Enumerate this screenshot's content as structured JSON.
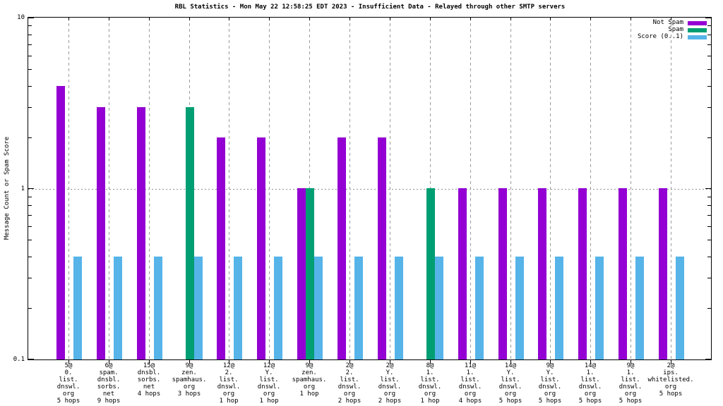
{
  "title": "RBL Statistics - Mon May 22 12:58:25 EDT 2023 - Insufficient Data - Relayed through other SMTP servers",
  "chart_data": {
    "type": "bar",
    "title": "RBL Statistics - Mon May 22 12:58:25 EDT 2023 - Insufficient Data - Relayed through other SMTP servers",
    "ylabel": "Message Count or Spam Score",
    "xlabel": "",
    "y_scale": "log",
    "ylim": [
      0.1,
      10
    ],
    "yticks": [
      {
        "label": "10",
        "value": 10
      },
      {
        "label": "1",
        "value": 1
      },
      {
        "label": "0.1",
        "value": 0.1
      }
    ],
    "grid": true,
    "grid_color": "#9b9b9b",
    "legend_position": "top-right-inside",
    "legend": [
      {
        "label": "Not Spam",
        "color": "#9400D3"
      },
      {
        "label": "Spam",
        "color": "#009E73"
      },
      {
        "label": "Score (0..1)",
        "color": "#56B4E9"
      }
    ],
    "categories": [
      [
        "5@",
        "0.",
        "list.",
        "dnswl.",
        "org",
        "5 hops"
      ],
      [
        "6@",
        "spam.",
        "dnsbl.",
        "sorbs.",
        "net",
        "9 hops"
      ],
      [
        "15@",
        "dnsbl.",
        "sorbs.",
        "net",
        "4 hops"
      ],
      [
        "9@",
        "zen.",
        "spamhaus.",
        "org",
        "3 hops"
      ],
      [
        "12@",
        "2.",
        "list.",
        "dnswl.",
        "org",
        "1 hop"
      ],
      [
        "12@",
        "Y.",
        "list.",
        "dnswl.",
        "org",
        "1 hop"
      ],
      [
        "9@",
        "zen.",
        "spamhaus.",
        "org",
        "1 hop"
      ],
      [
        "2@",
        "2.",
        "list.",
        "dnswl.",
        "org",
        "2 hops"
      ],
      [
        "2@",
        "Y.",
        "list.",
        "dnswl.",
        "org",
        "2 hops"
      ],
      [
        "8@",
        "1.",
        "list.",
        "dnswl.",
        "org",
        "1 hop"
      ],
      [
        "11@",
        "1.",
        "list.",
        "dnswl.",
        "org",
        "4 hops"
      ],
      [
        "14@",
        "Y.",
        "list.",
        "dnswl.",
        "org",
        "5 hops"
      ],
      [
        "9@",
        "Y.",
        "list.",
        "dnswl.",
        "org",
        "5 hops"
      ],
      [
        "14@",
        "1.",
        "list.",
        "dnswl.",
        "org",
        "5 hops"
      ],
      [
        "9@",
        "1.",
        "list.",
        "dnswl.",
        "org",
        "5 hops"
      ],
      [
        "2@",
        "ips.",
        "whitelisted.",
        "org",
        "5 hops"
      ]
    ],
    "series": [
      {
        "name": "Not Spam",
        "color": "#9400D3",
        "values": [
          4,
          3,
          3,
          null,
          2,
          2,
          1,
          2,
          2,
          null,
          1,
          1,
          1,
          1,
          1,
          1
        ]
      },
      {
        "name": "Spam",
        "color": "#009E73",
        "values": [
          null,
          null,
          null,
          3,
          null,
          null,
          1,
          null,
          null,
          1,
          null,
          null,
          null,
          null,
          null,
          null
        ]
      },
      {
        "name": "Score (0..1)",
        "color": "#56B4E9",
        "values": [
          0.4,
          0.4,
          0.4,
          0.4,
          0.4,
          0.4,
          0.4,
          0.4,
          0.4,
          0.4,
          0.4,
          0.4,
          0.4,
          0.4,
          0.4,
          0.4
        ]
      }
    ]
  }
}
